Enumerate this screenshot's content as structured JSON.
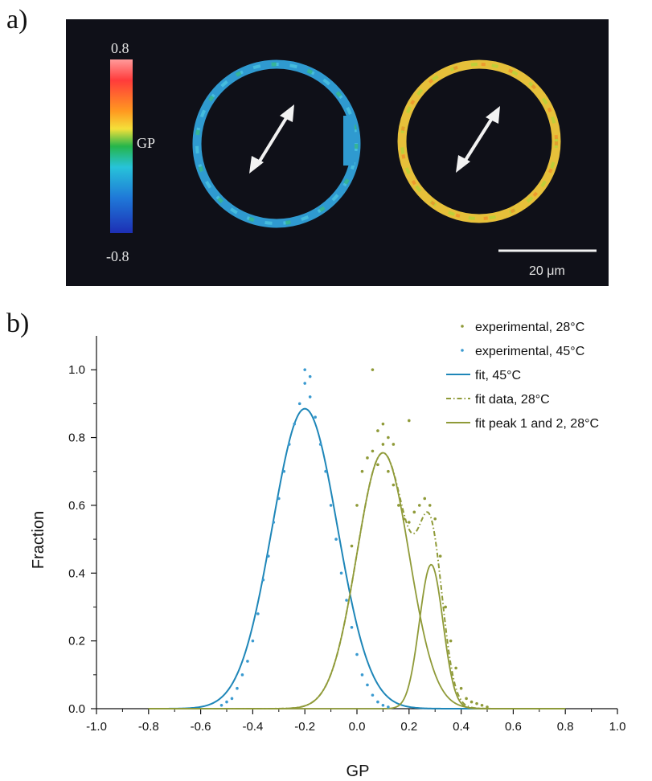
{
  "panel_a": {
    "label": "a)",
    "colorbar": {
      "max_label": "0.8",
      "mid_label": "GP",
      "min_label": "-0.8"
    },
    "scale_bar_label": "20 μm",
    "colors": {
      "background": "#0f1018",
      "cool_vesicle": "#39a7d8",
      "warm_vesicle": "#e8c53a"
    }
  },
  "panel_b": {
    "label": "b)"
  },
  "chart_data": {
    "type": "scatter",
    "xlabel": "GP",
    "ylabel": "Fraction",
    "xlim": [
      -1.0,
      1.0
    ],
    "ylim": [
      0.0,
      1.1
    ],
    "xticks": [
      "-1.0",
      "-0.8",
      "-0.6",
      "-0.4",
      "-0.2",
      "0.0",
      "0.2",
      "0.4",
      "0.6",
      "0.8",
      "1.0"
    ],
    "yticks": [
      "0.0",
      "0.2",
      "0.4",
      "0.6",
      "0.8",
      "1.0"
    ],
    "legend_position": "top-right",
    "series": [
      {
        "name": "experimental, 28°C",
        "kind": "points",
        "color": "#8f9a38",
        "x": [
          0.06,
          0.08,
          0.1,
          0.12,
          0.14,
          0.2,
          -0.02,
          0.0,
          0.02,
          0.04,
          0.06,
          0.08,
          0.1,
          0.12,
          0.14,
          0.16,
          0.18,
          0.2,
          0.22,
          0.24,
          0.26,
          0.28,
          0.3,
          0.32,
          0.34,
          0.36,
          0.38,
          0.4,
          0.42,
          0.44,
          0.46,
          0.48,
          0.5
        ],
        "y": [
          1.0,
          0.82,
          0.84,
          0.8,
          0.78,
          0.85,
          0.48,
          0.6,
          0.7,
          0.74,
          0.76,
          0.72,
          0.78,
          0.7,
          0.66,
          0.6,
          0.56,
          0.55,
          0.58,
          0.6,
          0.62,
          0.6,
          0.56,
          0.45,
          0.3,
          0.2,
          0.12,
          0.06,
          0.03,
          0.02,
          0.015,
          0.01,
          0.005
        ]
      },
      {
        "name": "experimental, 45°C",
        "kind": "points",
        "color": "#3a9ad0",
        "x": [
          -0.52,
          -0.5,
          -0.48,
          -0.46,
          -0.44,
          -0.42,
          -0.4,
          -0.38,
          -0.36,
          -0.34,
          -0.32,
          -0.3,
          -0.28,
          -0.26,
          -0.24,
          -0.22,
          -0.2,
          -0.18,
          -0.16,
          -0.14,
          -0.12,
          -0.1,
          -0.08,
          -0.06,
          -0.04,
          -0.02,
          0.0,
          0.02,
          0.04,
          0.06,
          0.08,
          0.1,
          0.12,
          -0.2,
          -0.18
        ],
        "y": [
          0.01,
          0.02,
          0.03,
          0.06,
          0.1,
          0.14,
          0.2,
          0.28,
          0.38,
          0.45,
          0.55,
          0.62,
          0.7,
          0.78,
          0.84,
          0.9,
          0.96,
          0.92,
          0.86,
          0.78,
          0.7,
          0.6,
          0.5,
          0.4,
          0.32,
          0.24,
          0.16,
          0.1,
          0.07,
          0.04,
          0.02,
          0.01,
          0.005,
          1.0,
          0.98
        ]
      },
      {
        "name": "fit, 45°C",
        "kind": "gaussian",
        "color": "#1e86b8",
        "style": "solid",
        "peaks": [
          {
            "amplitude": 0.885,
            "center": -0.2,
            "sigma": 0.125
          }
        ],
        "x_range": [
          -0.8,
          0.8
        ]
      },
      {
        "name": "fit data, 28°C",
        "kind": "gaussian",
        "color": "#8f9a38",
        "style": "dashdot",
        "peaks": [
          {
            "amplitude": 0.755,
            "center": 0.1,
            "sigma": 0.1
          },
          {
            "amplitude": 0.425,
            "center": 0.285,
            "sigma": 0.045
          }
        ],
        "x_range": [
          -0.8,
          0.8
        ]
      },
      {
        "name": "fit peak 1 and 2, 28°C",
        "kind": "gaussian_components",
        "color": "#8f9a38",
        "style": "solid",
        "peaks": [
          {
            "amplitude": 0.755,
            "center": 0.1,
            "sigma": 0.1
          },
          {
            "amplitude": 0.425,
            "center": 0.285,
            "sigma": 0.045
          }
        ],
        "x_range": [
          -0.8,
          0.8
        ]
      }
    ]
  }
}
